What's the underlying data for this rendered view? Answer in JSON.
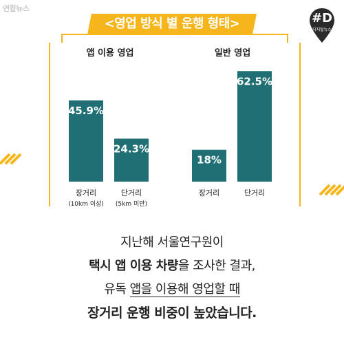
{
  "watermark": "연합뉴스",
  "title": "<영업 방식 별 운행 형태>",
  "logo": {
    "letter": "#D",
    "sub": "디지털뉴스"
  },
  "colors": {
    "bar": "#1f6f74",
    "title_bg": "#f6b51a",
    "accent": "#f6b51a",
    "logo_bg": "#2a2a2a"
  },
  "chart_data": {
    "type": "bar",
    "groups": [
      {
        "label": "앱 이용 영업",
        "categories": [
          {
            "label": "장거리",
            "sub": "(10km 이상)",
            "value": 45.9,
            "display": "45.9%"
          },
          {
            "label": "단거리",
            "sub": "(5km 미만)",
            "value": 24.3,
            "display": "24.3%"
          }
        ]
      },
      {
        "label": "일반 영업",
        "categories": [
          {
            "label": "장거리",
            "sub": "",
            "value": 18,
            "display": "18%"
          },
          {
            "label": "단거리",
            "sub": "",
            "value": 62.5,
            "display": "62.5%"
          }
        ]
      }
    ],
    "ylim": [
      0,
      70
    ]
  },
  "caption": {
    "line1": "지난해 서울연구원이",
    "line2_bold": "택시 앱 이용 차량",
    "line2_rest": "을 조사한 결과,",
    "line3_pre": "유독 ",
    "line3_u": "앱을 이용해 영업할 때",
    "line4": "장거리 운행 비중이 높았습니다."
  }
}
